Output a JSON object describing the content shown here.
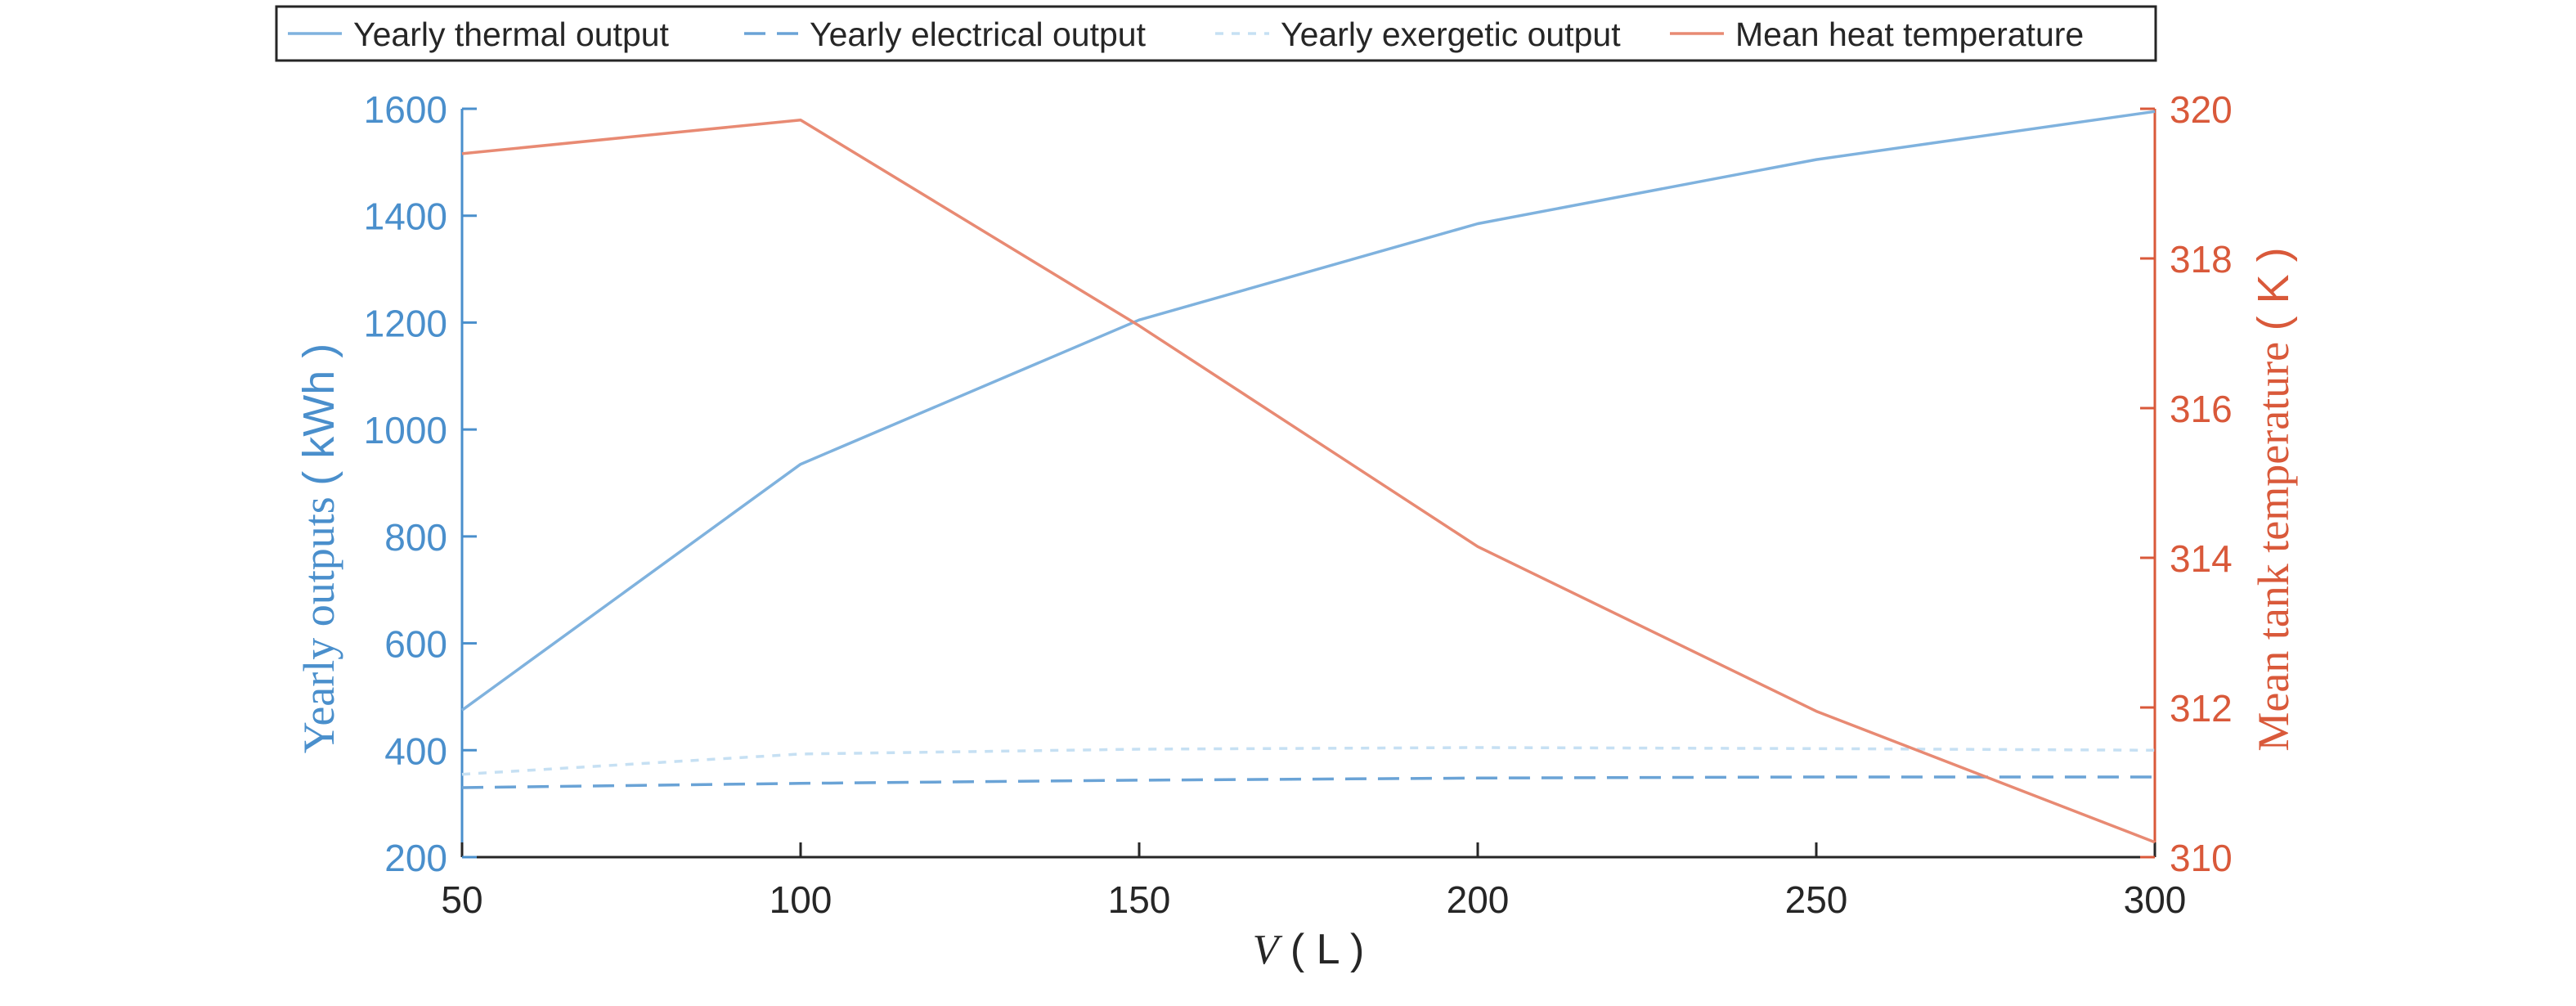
{
  "chart_data": {
    "type": "line",
    "x": [
      50,
      100,
      150,
      200,
      250,
      300
    ],
    "xlim": [
      50,
      300
    ],
    "x_ticks": [
      "50",
      "100",
      "150",
      "200",
      "250",
      "300"
    ],
    "xlabel": {
      "var": "V",
      "open": "(",
      "unit": "L",
      "close": ")"
    },
    "left_axis": {
      "label": "Yearly outputs",
      "unit_open": "(",
      "unit": "kWh",
      "unit_close": ")",
      "ylim": [
        200,
        1600
      ],
      "ticks": [
        "200",
        "400",
        "600",
        "800",
        "1000",
        "1200",
        "1400",
        "1600"
      ],
      "color": "#4a8fcc"
    },
    "right_axis": {
      "label": "Mean tank temperature",
      "unit_open": "(",
      "unit": "K",
      "unit_close": ")",
      "ylim": [
        310,
        320
      ],
      "ticks": [
        "310",
        "312",
        "314",
        "316",
        "318",
        "320"
      ],
      "color": "#d9593a"
    },
    "series": [
      {
        "name": "Yearly thermal output",
        "axis": "left",
        "style": "solid",
        "color": "#7fb2de",
        "values": [
          475,
          935,
          1205,
          1385,
          1505,
          1595
        ]
      },
      {
        "name": "Yearly electrical output",
        "axis": "left",
        "style": "dashed",
        "color": "#6aa3d6",
        "values": [
          330,
          338,
          344,
          348,
          350,
          350
        ]
      },
      {
        "name": "Yearly exergetic output",
        "axis": "left",
        "style": "dotted",
        "color": "#c6e0f3",
        "values": [
          355,
          393,
          402,
          405,
          403,
          400
        ]
      },
      {
        "name": "Mean heat temperature",
        "axis": "right",
        "style": "solid",
        "color": "#e88a73",
        "values": [
          319.4,
          319.85,
          317.1,
          314.15,
          311.95,
          310.2
        ]
      }
    ],
    "legend_placement": "top",
    "grid": false
  }
}
